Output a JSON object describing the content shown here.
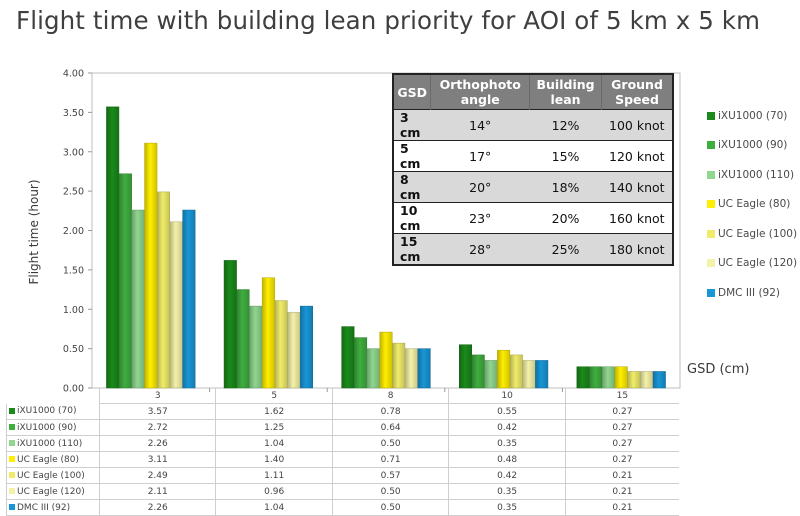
{
  "title": "Flight time with building lean priority for AOI of 5 km x 5 km",
  "chart_data": {
    "type": "bar",
    "title": "Flight time with building lean priority for AOI of 5 km x 5 km",
    "xlabel": "GSD (cm)",
    "ylabel": "Flight time (hour)",
    "ylim": [
      0,
      4.0
    ],
    "yticks": [
      "0.00",
      "0.50",
      "1.00",
      "1.50",
      "2.00",
      "2.50",
      "3.00",
      "3.50",
      "4.00"
    ],
    "grid": false,
    "legend_position": "right",
    "categories": [
      "3",
      "5",
      "8",
      "10",
      "15"
    ],
    "series": [
      {
        "name": "iXU1000 (70)",
        "color": "#1a8a1a",
        "values": [
          3.57,
          1.62,
          0.78,
          0.55,
          0.27
        ],
        "labels": [
          "3.57",
          "1.62",
          "0.78",
          "0.55",
          "0.27"
        ]
      },
      {
        "name": "iXU1000 (90)",
        "color": "#3fae3f",
        "values": [
          2.72,
          1.25,
          0.64,
          0.42,
          0.27
        ],
        "labels": [
          "2.72",
          "1.25",
          "0.64",
          "0.42",
          "0.27"
        ]
      },
      {
        "name": "iXU1000 (110)",
        "color": "#8fd68f",
        "values": [
          2.26,
          1.04,
          0.5,
          0.35,
          0.27
        ],
        "labels": [
          "2.26",
          "1.04",
          "0.50",
          "0.35",
          "0.27"
        ]
      },
      {
        "name": "UC Eagle (80)",
        "color": "#ffee00",
        "values": [
          3.11,
          1.4,
          0.71,
          0.48,
          0.27
        ],
        "labels": [
          "3.11",
          "1.40",
          "0.71",
          "0.48",
          "0.27"
        ]
      },
      {
        "name": "UC Eagle (100)",
        "color": "#f0ec6a",
        "values": [
          2.49,
          1.11,
          0.57,
          0.42,
          0.21
        ],
        "labels": [
          "2.49",
          "1.11",
          "0.57",
          "0.42",
          "0.21"
        ]
      },
      {
        "name": "UC Eagle (120)",
        "color": "#f4f2a8",
        "values": [
          2.11,
          0.96,
          0.5,
          0.35,
          0.21
        ],
        "labels": [
          "2.11",
          "0.96",
          "0.50",
          "0.35",
          "0.21"
        ]
      },
      {
        "name": "DMC III (92)",
        "color": "#1896d6",
        "values": [
          2.26,
          1.04,
          0.5,
          0.35,
          0.21
        ],
        "labels": [
          "2.26",
          "1.04",
          "0.50",
          "0.35",
          "0.21"
        ]
      }
    ]
  },
  "inset_table": {
    "headers": [
      "GSD",
      "Orthophoto angle",
      "Building lean",
      "Ground Speed"
    ],
    "rows": [
      {
        "gsd": "3 cm",
        "angle": "14°",
        "lean": "12%",
        "speed": "100 knot"
      },
      {
        "gsd": "5 cm",
        "angle": "17°",
        "lean": "15%",
        "speed": "120 knot"
      },
      {
        "gsd": "8 cm",
        "angle": "20°",
        "lean": "18%",
        "speed": "140 knot"
      },
      {
        "gsd": "10 cm",
        "angle": "23°",
        "lean": "20%",
        "speed": "160 knot"
      },
      {
        "gsd": "15 cm",
        "angle": "28°",
        "lean": "25%",
        "speed": "180 knot"
      }
    ]
  }
}
